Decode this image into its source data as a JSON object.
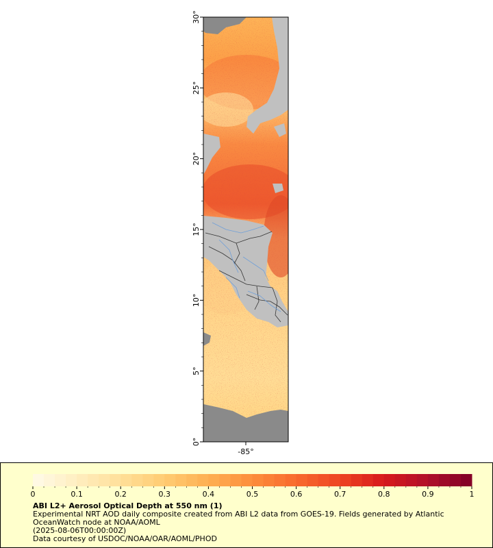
{
  "map": {
    "y_axis": {
      "ticks": [
        "0°",
        "5°",
        "10°",
        "15°",
        "20°",
        "25°",
        "30°"
      ]
    },
    "x_axis": {
      "ticks": [
        "-85°"
      ]
    },
    "colors": {
      "land": "#c0c0c0",
      "no_data": "#8a8a8a",
      "rivers": "#6f9fd8",
      "borders": "#333333"
    }
  },
  "legend": {
    "title": "ABI L2+ Aerosol Optical Depth at 550 nm (1)",
    "line1": "Experimental NRT AOD daily composite created from ABI L2 data from GOES-19. Fields generated by Atlantic",
    "line2": "OceanWatch node at NOAA/AOML",
    "line3": "(2025-08-06T00:00:00Z)",
    "line4": "Data courtesy of USDOC/NOAA/OAR/AOML/PHOD",
    "colorbar": {
      "min": 0,
      "max": 1,
      "tick_labels": [
        "0",
        "0.1",
        "0.2",
        "0.3",
        "0.4",
        "0.5",
        "0.6",
        "0.7",
        "0.8",
        "0.9",
        "1"
      ],
      "colors": [
        "#fffbe8",
        "#ffeec0",
        "#ffdf99",
        "#ffcb72",
        "#feb052",
        "#fd8d3c",
        "#f86a2d",
        "#ee4423",
        "#d7191c",
        "#b0102a",
        "#800026"
      ]
    }
  }
}
